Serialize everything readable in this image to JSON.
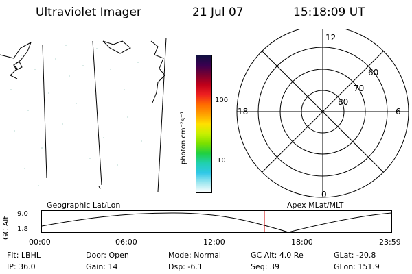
{
  "header": {
    "title": "Ultraviolet Imager",
    "date": "21 Jul 07",
    "time": "15:18:09 UT"
  },
  "panels": {
    "left_label": "Geographic Lat/Lon",
    "right_label": "Apex MLat/MLT"
  },
  "colorbar": {
    "unit_label": "photon cm⁻²s⁻¹",
    "ticks": [
      "100",
      "10"
    ],
    "colors": [
      "#101040",
      "#3a0050",
      "#7a0030",
      "#c0001a",
      "#ee2020",
      "#ff6a00",
      "#ffa000",
      "#ffe000",
      "#c8f000",
      "#7ae000",
      "#20d040",
      "#20d0b0",
      "#30c8e8",
      "#a0e8f0",
      "#ffffff"
    ]
  },
  "polar": {
    "mlt_labels": {
      "top": "12",
      "left": "18",
      "right": "6",
      "bottom": "0"
    },
    "lat_labels": [
      "60",
      "70",
      "80"
    ]
  },
  "altitude_plot": {
    "ylabel": "GC Alt",
    "yticks": [
      "9.0",
      "1.8"
    ],
    "xticks": [
      "00:00",
      "06:00",
      "12:00",
      "18:00",
      "23:59"
    ],
    "current_time_marker": "15:18"
  },
  "status": {
    "row1": [
      {
        "label": "Flt:",
        "value": "LBHL"
      },
      {
        "label": "Door:",
        "value": "Open"
      },
      {
        "label": "Mode:",
        "value": "Normal"
      },
      {
        "label": "GC Alt:",
        "value": "4.0 Re"
      },
      {
        "label": "GLat:",
        "value": "-20.8"
      }
    ],
    "row2": [
      {
        "label": "IP:",
        "value": "36.0"
      },
      {
        "label": "Gain:",
        "value": "14"
      },
      {
        "label": "Dsp:",
        "value": "-6.1"
      },
      {
        "label": "Seq:",
        "value": "39"
      },
      {
        "label": "GLon:",
        "value": "151.9"
      }
    ]
  }
}
